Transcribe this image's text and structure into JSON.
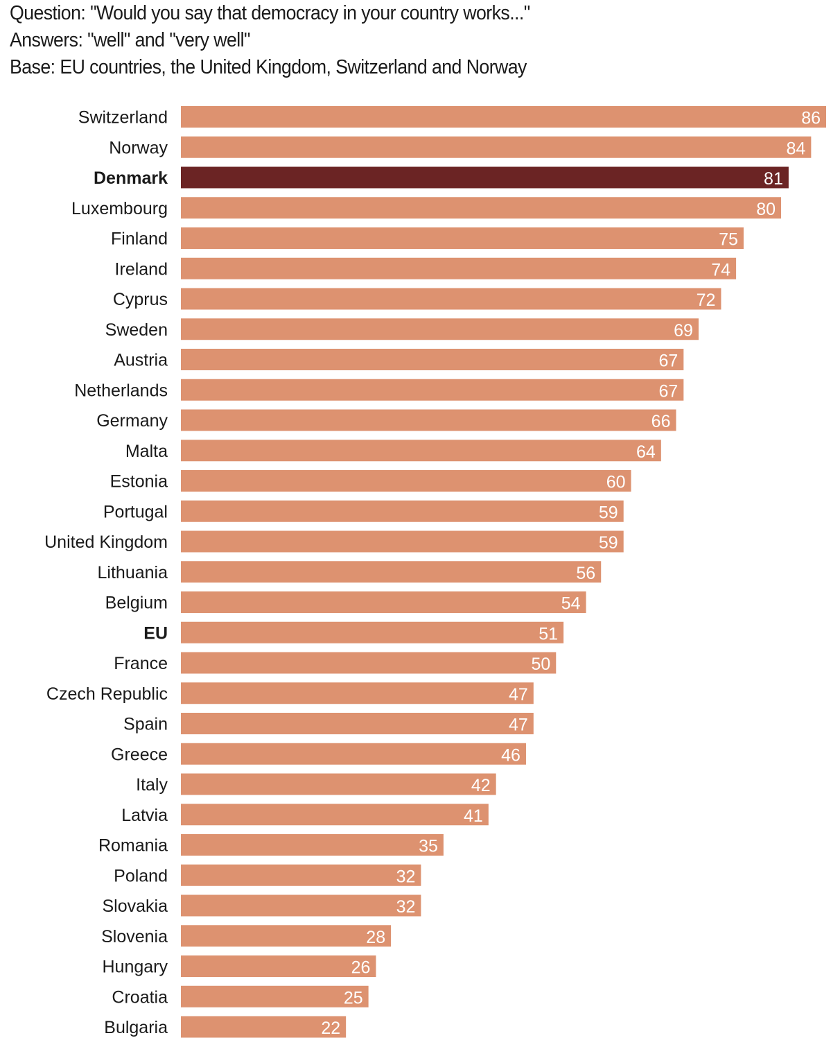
{
  "header": {
    "question": "Question: \"Would you say that democracy in your country works...\"",
    "answers": "Answers: \"well\" and \"very well\"",
    "base": "Base: EU countries, the United Kingdom, Switzerland and Norway"
  },
  "chart_data": {
    "type": "bar",
    "orientation": "horizontal",
    "title": "",
    "xlabel": "",
    "ylabel": "",
    "xlim": [
      0,
      86
    ],
    "grid": false,
    "legend": "none",
    "colors": {
      "default": "#dd9270",
      "highlight": "#6b2424",
      "value_label": "#ffffff"
    },
    "categories": [
      "Switzerland",
      "Norway",
      "Denmark",
      "Luxembourg",
      "Finland",
      "Ireland",
      "Cyprus",
      "Sweden",
      "Austria",
      "Netherlands",
      "Germany",
      "Malta",
      "Estonia",
      "Portugal",
      "United Kingdom",
      "Lithuania",
      "Belgium",
      "EU",
      "France",
      "Czech Republic",
      "Spain",
      "Greece",
      "Italy",
      "Latvia",
      "Romania",
      "Poland",
      "Slovakia",
      "Slovenia",
      "Hungary",
      "Croatia",
      "Bulgaria"
    ],
    "values": [
      86,
      84,
      81,
      80,
      75,
      74,
      72,
      69,
      67,
      67,
      66,
      64,
      60,
      59,
      59,
      56,
      54,
      51,
      50,
      47,
      47,
      46,
      42,
      41,
      35,
      32,
      32,
      28,
      26,
      25,
      22
    ],
    "highlighted": [
      "Denmark"
    ],
    "bold_labels": [
      "Denmark",
      "EU"
    ]
  }
}
